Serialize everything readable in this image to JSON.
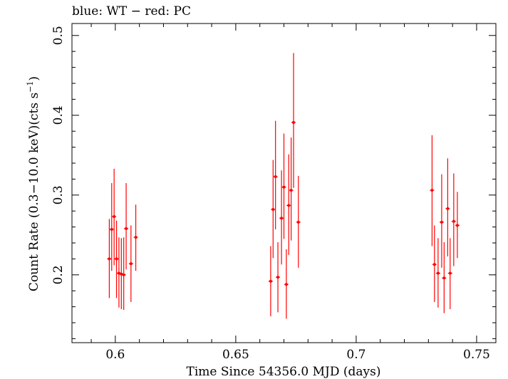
{
  "chart_data": {
    "type": "scatter",
    "title": "blue: WT − red: PC",
    "xlabel": "Time Since 54356.0 MJD (days)",
    "ylabel_main": "Count Rate (0.3−10.0 keV)(cts s",
    "ylabel_sup": "−1",
    "ylabel_end": ")",
    "xlim": [
      0.582,
      0.758
    ],
    "ylim": [
      0.115,
      0.515
    ],
    "x_ticks": [
      {
        "value": 0.6,
        "label": "0.6"
      },
      {
        "value": 0.65,
        "label": "0.65"
      },
      {
        "value": 0.7,
        "label": "0.7"
      },
      {
        "value": 0.75,
        "label": "0.75"
      }
    ],
    "y_ticks": [
      {
        "value": 0.2,
        "label": "0.2"
      },
      {
        "value": 0.3,
        "label": "0.3"
      },
      {
        "value": 0.4,
        "label": "0.4"
      },
      {
        "value": 0.5,
        "label": "0.5"
      }
    ],
    "series": [
      {
        "color": "#ff0000",
        "points": [
          {
            "x": 0.5975,
            "y": 0.22,
            "ylo": 0.171,
            "yhi": 0.27
          },
          {
            "x": 0.5985,
            "y": 0.257,
            "ylo": 0.205,
            "yhi": 0.315
          },
          {
            "x": 0.5995,
            "y": 0.273,
            "ylo": 0.212,
            "yhi": 0.333
          },
          {
            "x": 0.6005,
            "y": 0.22,
            "ylo": 0.171,
            "yhi": 0.268
          },
          {
            "x": 0.6015,
            "y": 0.202,
            "ylo": 0.159,
            "yhi": 0.247
          },
          {
            "x": 0.6025,
            "y": 0.201,
            "ylo": 0.157,
            "yhi": 0.246
          },
          {
            "x": 0.6035,
            "y": 0.2,
            "ylo": 0.156,
            "yhi": 0.247
          },
          {
            "x": 0.6045,
            "y": 0.258,
            "ylo": 0.207,
            "yhi": 0.315
          },
          {
            "x": 0.6065,
            "y": 0.214,
            "ylo": 0.166,
            "yhi": 0.262
          },
          {
            "x": 0.6085,
            "y": 0.247,
            "ylo": 0.205,
            "yhi": 0.288
          },
          {
            "x": 0.6645,
            "y": 0.192,
            "ylo": 0.148,
            "yhi": 0.236
          },
          {
            "x": 0.6655,
            "y": 0.282,
            "ylo": 0.221,
            "yhi": 0.344
          },
          {
            "x": 0.6665,
            "y": 0.323,
            "ylo": 0.257,
            "yhi": 0.393
          },
          {
            "x": 0.6675,
            "y": 0.197,
            "ylo": 0.153,
            "yhi": 0.241
          },
          {
            "x": 0.669,
            "y": 0.271,
            "ylo": 0.213,
            "yhi": 0.331
          },
          {
            "x": 0.67,
            "y": 0.31,
            "ylo": 0.245,
            "yhi": 0.377
          },
          {
            "x": 0.671,
            "y": 0.188,
            "ylo": 0.145,
            "yhi": 0.232
          },
          {
            "x": 0.672,
            "y": 0.287,
            "ylo": 0.225,
            "yhi": 0.351
          },
          {
            "x": 0.673,
            "y": 0.306,
            "ylo": 0.243,
            "yhi": 0.372
          },
          {
            "x": 0.674,
            "y": 0.391,
            "ylo": 0.309,
            "yhi": 0.478
          },
          {
            "x": 0.676,
            "y": 0.266,
            "ylo": 0.209,
            "yhi": 0.324
          },
          {
            "x": 0.7315,
            "y": 0.306,
            "ylo": 0.236,
            "yhi": 0.375
          },
          {
            "x": 0.7325,
            "y": 0.213,
            "ylo": 0.166,
            "yhi": 0.262
          },
          {
            "x": 0.734,
            "y": 0.202,
            "ylo": 0.159,
            "yhi": 0.246
          },
          {
            "x": 0.7355,
            "y": 0.266,
            "ylo": 0.209,
            "yhi": 0.326
          },
          {
            "x": 0.7365,
            "y": 0.196,
            "ylo": 0.152,
            "yhi": 0.241
          },
          {
            "x": 0.738,
            "y": 0.283,
            "ylo": 0.223,
            "yhi": 0.346
          },
          {
            "x": 0.739,
            "y": 0.202,
            "ylo": 0.157,
            "yhi": 0.246
          },
          {
            "x": 0.7405,
            "y": 0.267,
            "ylo": 0.211,
            "yhi": 0.327
          },
          {
            "x": 0.742,
            "y": 0.262,
            "ylo": 0.221,
            "yhi": 0.304
          }
        ]
      }
    ],
    "grid": false,
    "legend": "none"
  }
}
